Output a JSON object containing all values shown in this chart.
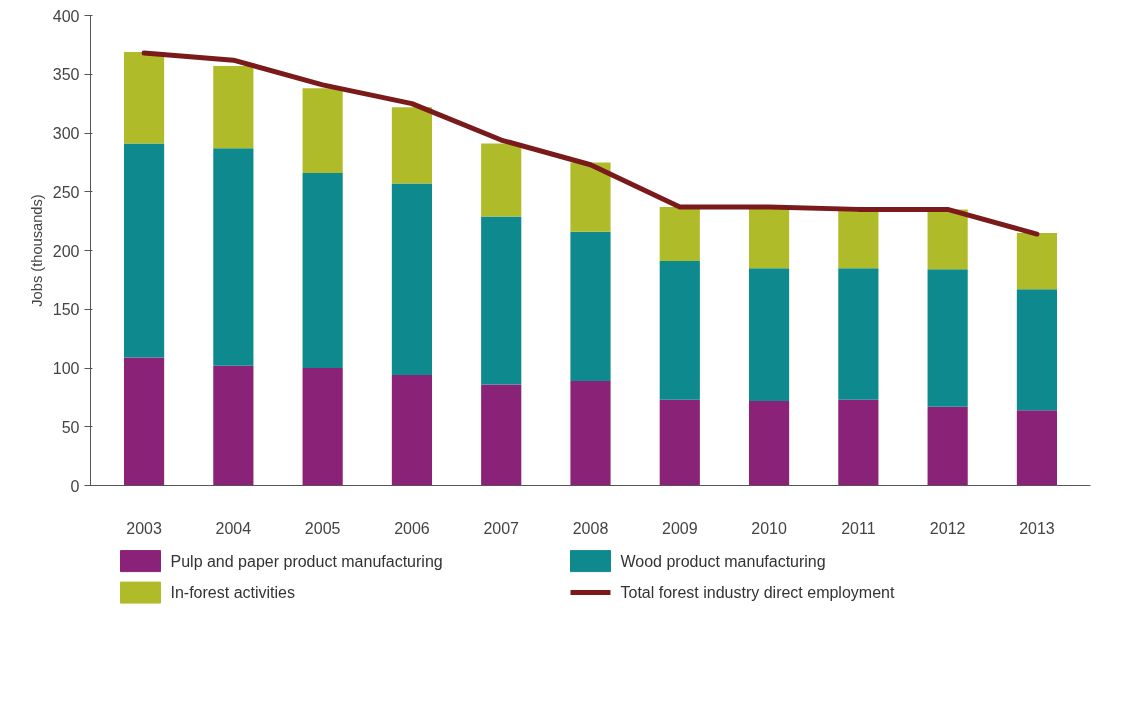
{
  "chart_data": {
    "type": "bar",
    "stacked": true,
    "ylabel": "Jobs (thousands)",
    "categories": [
      "2003",
      "2004",
      "2005",
      "2006",
      "2007",
      "2008",
      "2009",
      "2010",
      "2011",
      "2012",
      "2013"
    ],
    "series": [
      {
        "name": "Pulp and paper product manufacturing",
        "color": "#8a2277",
        "values": [
          109,
          102,
          100,
          94,
          86,
          89,
          73,
          72,
          73,
          67,
          64
        ]
      },
      {
        "name": "Wood product manufacturing",
        "color": "#0e8a8f",
        "values": [
          182,
          185,
          166,
          163,
          143,
          127,
          118,
          113,
          112,
          117,
          103
        ]
      },
      {
        "name": "In-forest activities",
        "color": "#b0bb2a",
        "values": [
          78,
          70,
          72,
          65,
          62,
          59,
          46,
          52,
          50,
          51,
          48
        ]
      },
      {
        "name": "Total forest industry direct employment",
        "color": "#7a1a1a",
        "type": "line",
        "values": [
          368,
          362,
          341,
          325,
          294,
          273,
          237,
          237,
          235,
          235,
          214
        ]
      }
    ],
    "ylim": [
      0,
      400
    ],
    "yticks": [
      0,
      50,
      100,
      150,
      200,
      250,
      300,
      350,
      400
    ],
    "grid": false,
    "legend": "bottom"
  }
}
